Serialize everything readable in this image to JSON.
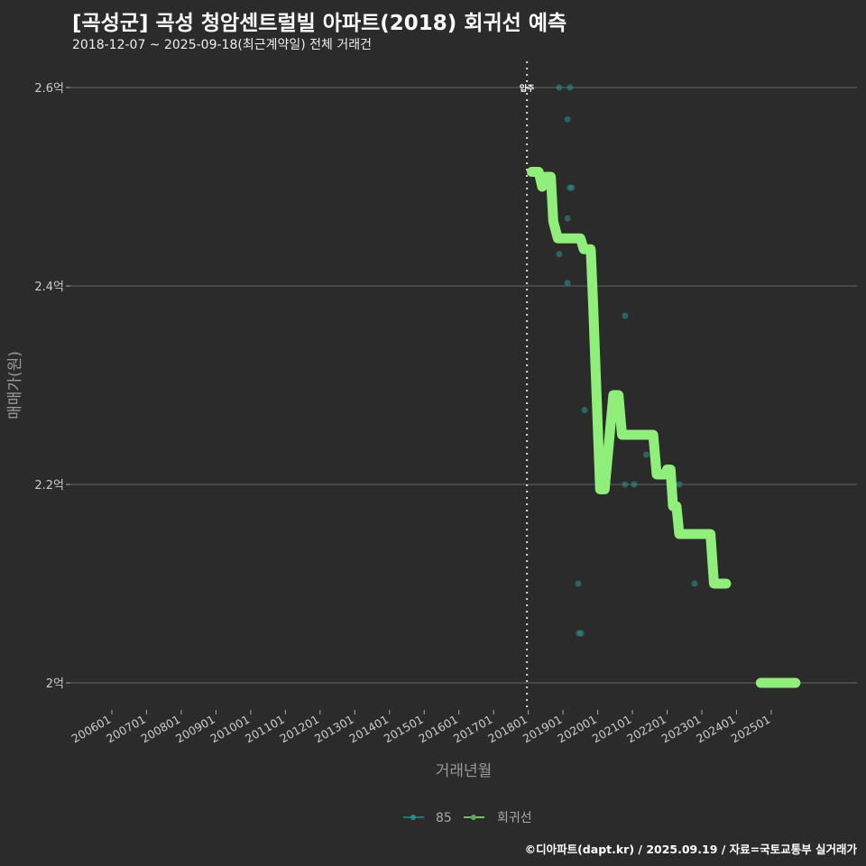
{
  "title": "[곡성군] 곡성 청암센트럴빌 아파트(2018) 회귀선 예측",
  "subtitle": "2018-12-07 ~ 2025-09-18(최근계약일) 전체 거래건",
  "footer": "©디아파트(dapt.kr) / 2025.09.19 / 자료=국토교통부 실거래가",
  "chart_data": {
    "type": "scatter",
    "xlabel": "거래년월",
    "ylabel": "매매가(원)",
    "ylim": [
      1.97,
      2.63
    ],
    "xlim": [
      2005.0,
      2027.7
    ],
    "y_ticks": [
      {
        "v": 2.0,
        "label": "2억"
      },
      {
        "v": 2.2,
        "label": "2.2억"
      },
      {
        "v": 2.4,
        "label": "2.4억"
      },
      {
        "v": 2.6,
        "label": "2.6억"
      }
    ],
    "x_ticks": [
      "200601",
      "200701",
      "200801",
      "200901",
      "201001",
      "201101",
      "201201",
      "201301",
      "201401",
      "201501",
      "201601",
      "201701",
      "201801",
      "201901",
      "202001",
      "202101",
      "202201",
      "202301",
      "202401",
      "202501"
    ],
    "vline": {
      "x": 2018.0,
      "label": "입주"
    },
    "legend": [
      "85",
      "회귀선"
    ],
    "legend_position": "bottom",
    "colors": {
      "points": "#2a8c88",
      "line": "#90ee7a",
      "grid": "#666666"
    },
    "series": [
      {
        "name": "85",
        "type": "scatter",
        "points": [
          [
            2018.89,
            2.6
          ],
          [
            2019.2,
            2.6
          ],
          [
            2019.13,
            2.568
          ],
          [
            2019.2,
            2.499
          ],
          [
            2019.25,
            2.499
          ],
          [
            2019.13,
            2.468
          ],
          [
            2018.89,
            2.432
          ],
          [
            2019.13,
            2.403
          ],
          [
            2020.79,
            2.37
          ],
          [
            2019.62,
            2.275
          ],
          [
            2020.79,
            2.2
          ],
          [
            2021.05,
            2.2
          ],
          [
            2022.35,
            2.2
          ],
          [
            2021.4,
            2.23
          ],
          [
            2019.44,
            2.1
          ],
          [
            2022.79,
            2.1
          ],
          [
            2019.46,
            2.05
          ],
          [
            2019.52,
            2.05
          ]
        ]
      },
      {
        "name": "회귀선",
        "type": "line",
        "segments": [
          [
            [
              2018.1,
              2.515
            ],
            [
              2018.3,
              2.515
            ],
            [
              2018.4,
              2.5
            ],
            [
              2018.5,
              2.51
            ],
            [
              2018.65,
              2.51
            ],
            [
              2018.72,
              2.465
            ],
            [
              2018.85,
              2.448
            ],
            [
              2019.5,
              2.448
            ],
            [
              2019.6,
              2.437
            ],
            [
              2019.8,
              2.437
            ],
            [
              2019.87,
              2.38
            ],
            [
              2020.07,
              2.195
            ],
            [
              2020.2,
              2.195
            ],
            [
              2020.45,
              2.29
            ],
            [
              2020.6,
              2.29
            ],
            [
              2020.7,
              2.25
            ],
            [
              2021.6,
              2.25
            ],
            [
              2021.7,
              2.21
            ],
            [
              2021.95,
              2.21
            ],
            [
              2022.0,
              2.215
            ],
            [
              2022.1,
              2.215
            ],
            [
              2022.17,
              2.178
            ],
            [
              2022.27,
              2.178
            ],
            [
              2022.35,
              2.15
            ],
            [
              2023.25,
              2.15
            ],
            [
              2023.35,
              2.1
            ],
            [
              2023.7,
              2.1
            ]
          ],
          [
            [
              2024.7,
              2.0
            ],
            [
              2025.7,
              2.0
            ]
          ]
        ]
      }
    ]
  }
}
